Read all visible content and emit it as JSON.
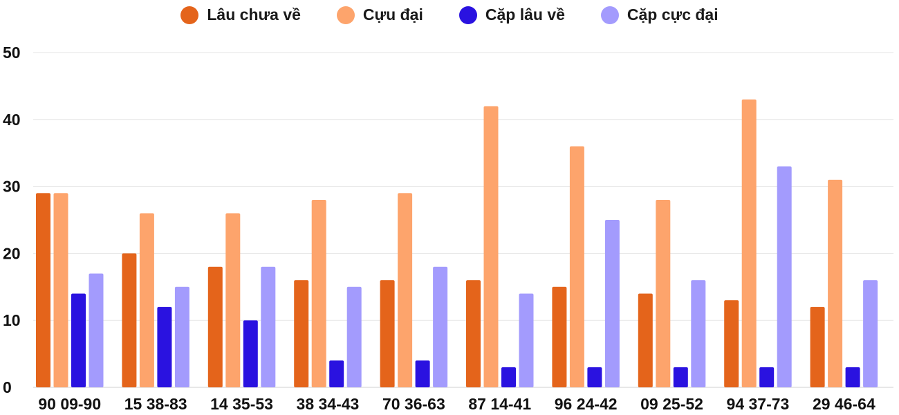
{
  "chart_data": {
    "type": "bar",
    "title": "",
    "xlabel": "",
    "ylabel": "",
    "ylim": [
      0,
      50
    ],
    "yticks": [
      0,
      10,
      20,
      30,
      40,
      50
    ],
    "grid": true,
    "legend_position": "top-center",
    "categories": [
      "90 09-90",
      "15 38-83",
      "14 35-53",
      "38 34-43",
      "70 36-63",
      "87 14-41",
      "96 24-42",
      "09 25-52",
      "94 37-73",
      "29 46-64"
    ],
    "series": [
      {
        "name": "Lâu chưa về",
        "color": "#e4641b",
        "values": [
          29,
          20,
          18,
          16,
          16,
          16,
          15,
          14,
          13,
          12
        ]
      },
      {
        "name": "Cựu đại",
        "color": "#fda46c",
        "values": [
          29,
          26,
          26,
          28,
          29,
          42,
          36,
          28,
          43,
          31
        ]
      },
      {
        "name": "Cặp lâu về",
        "color": "#2a12e0",
        "values": [
          14,
          12,
          10,
          4,
          4,
          3,
          3,
          3,
          3,
          3
        ]
      },
      {
        "name": "Cặp cực đại",
        "color": "#a39bfd",
        "values": [
          17,
          15,
          18,
          15,
          18,
          14,
          25,
          16,
          33,
          16
        ]
      }
    ]
  }
}
